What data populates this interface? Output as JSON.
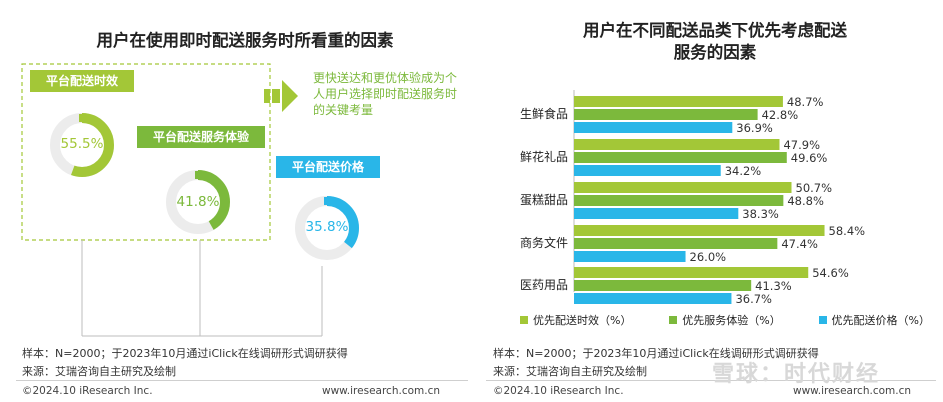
{
  "left": {
    "title": "用户在使用即时配送服务时所看重的因素",
    "callout": "更快送达和更优体验成为个人用户选择即时配送服务时的关键考量",
    "factors": [
      {
        "label": "平台配送时效",
        "value": 55.5,
        "value_text": "55.5%",
        "color": "#a3c737"
      },
      {
        "label": "平台配送服务体验",
        "value": 41.8,
        "value_text": "41.8%",
        "color": "#7cb93c"
      },
      {
        "label": "平台配送价格",
        "value": 35.8,
        "value_text": "35.8%",
        "color": "#29b6e8"
      }
    ],
    "sample": "样本：N=2000；于2023年10月通过iClick在线调研形式调研获得",
    "source": "来源：艾瑞咨询自主研究及绘制",
    "copyright": "©2024.10 iResearch Inc.",
    "url": "www.iresearch.com.cn"
  },
  "right": {
    "title_line1": "用户在不同配送品类下优先考虑配送",
    "title_line2": "服务的因素",
    "sample": "样本：N=2000；于2023年10月通过iClick在线调研形式调研获得",
    "source": "来源：艾瑞咨询自主研究及绘制",
    "copyright": "©2024.10 iResearch Inc.",
    "url": "www.iresearch.com.cn"
  },
  "watermark": "雪球：时代财经",
  "chart_data": {
    "type": "bar",
    "orientation": "horizontal",
    "categories": [
      "生鲜食品",
      "鲜花礼品",
      "蛋糕甜品",
      "商务文件",
      "医药用品"
    ],
    "series": [
      {
        "name": "优先配送时效（%）",
        "color": "#a3c737",
        "values": [
          48.7,
          47.9,
          50.7,
          58.4,
          54.6
        ]
      },
      {
        "name": "优先服务体验（%）",
        "color": "#7cb93c",
        "values": [
          42.8,
          49.6,
          48.8,
          47.4,
          41.3
        ]
      },
      {
        "name": "优先配送价格（%）",
        "color": "#29b6e8",
        "values": [
          36.9,
          34.2,
          38.3,
          26.0,
          36.7
        ]
      }
    ],
    "value_labels": [
      [
        "48.7%",
        "42.8%",
        "36.9%"
      ],
      [
        "47.9%",
        "49.6%",
        "34.2%"
      ],
      [
        "50.7%",
        "48.8%",
        "38.3%"
      ],
      [
        "58.4%",
        "47.4%",
        "26.0%"
      ],
      [
        "54.6%",
        "41.3%",
        "36.7%"
      ]
    ],
    "xlim": [
      0,
      70
    ],
    "legend_position": "bottom",
    "grid": false
  }
}
